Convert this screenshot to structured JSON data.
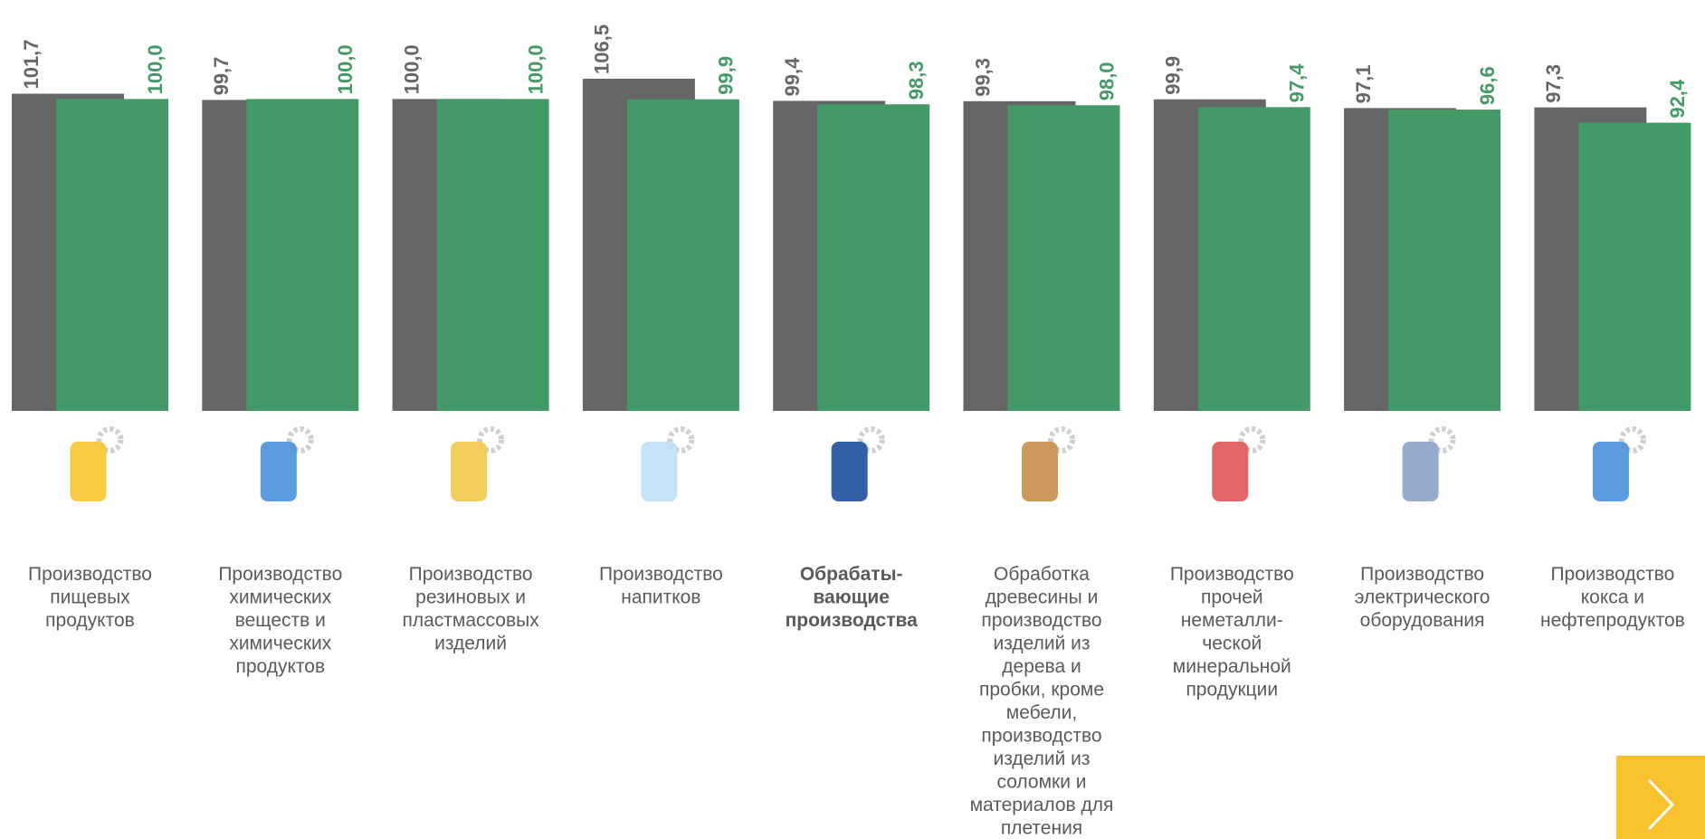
{
  "chart_data": {
    "type": "bar",
    "categories": [
      [
        "Производство",
        "пищевых",
        "продуктов"
      ],
      [
        "Производство",
        "химических",
        "веществ и",
        "химических",
        "продуктов"
      ],
      [
        "Производство",
        "резиновых и",
        "пластмассовых",
        "изделий"
      ],
      [
        "Производство",
        "напитков"
      ],
      [
        "Обрабаты-",
        "вающие",
        "производства"
      ],
      [
        "Обработка",
        "древесины и",
        "производство",
        "изделий из",
        "дерева и",
        "пробки, кроме",
        "мебели,",
        "производство",
        "изделий из",
        "соломки и",
        "материалов для",
        "плетения"
      ],
      [
        "Производство",
        "прочей",
        "неметалли-",
        "ческой",
        "минеральной",
        "продукции"
      ],
      [
        "Производство",
        "электрического",
        "оборудования"
      ],
      [
        "Производство",
        "кокса и",
        "нефтепродуктов"
      ]
    ],
    "series": [
      {
        "color": "#666666",
        "values": [
          101.7,
          99.7,
          100.0,
          106.5,
          99.4,
          99.3,
          99.9,
          97.1,
          97.3
        ],
        "value_labels": [
          "101,7",
          "99,7",
          "100,0",
          "106,5",
          "99,4",
          "99,3",
          "99,9",
          "97,1",
          "97,3"
        ]
      },
      {
        "color": "#439a66",
        "values": [
          100.0,
          100.0,
          100.0,
          99.9,
          98.3,
          98.0,
          97.4,
          96.6,
          92.4
        ],
        "value_labels": [
          "100,0",
          "100,0",
          "100,0",
          "99,9",
          "98,3",
          "98,0",
          "97,4",
          "96,6",
          "92,4"
        ]
      }
    ],
    "ylim": [
      0,
      130
    ]
  }
}
